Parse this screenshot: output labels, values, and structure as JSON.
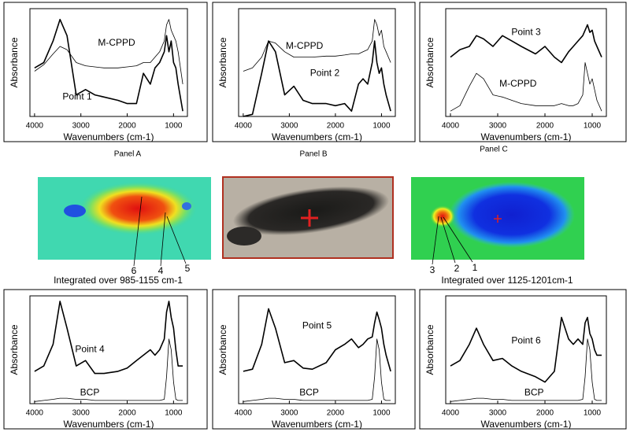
{
  "chart_data": [
    {
      "type": "line",
      "xlabel": "Wavenumbers (cm-1)",
      "ylabel": "Absorbance",
      "x": [
        4000,
        3800,
        3600,
        3450,
        3300,
        3100,
        2900,
        2700,
        2500,
        2200,
        2000,
        1800,
        1650,
        1500,
        1400,
        1300,
        1200,
        1150,
        1100,
        1050,
        1000,
        950,
        900,
        800
      ],
      "xlim": [
        4100,
        700
      ],
      "xticks": [
        4000,
        3000,
        2000,
        1000
      ],
      "ylim": [
        0,
        1
      ],
      "series": [
        {
          "name": "M-CPPD",
          "color": "#000000",
          "style": "thin",
          "values": [
            0.42,
            0.48,
            0.58,
            0.65,
            0.62,
            0.5,
            0.47,
            0.46,
            0.45,
            0.45,
            0.46,
            0.47,
            0.5,
            0.5,
            0.55,
            0.6,
            0.7,
            0.85,
            0.9,
            0.8,
            0.75,
            0.7,
            0.6,
            0.3
          ]
        },
        {
          "name": "Point 1",
          "color": "#000000",
          "style": "thick",
          "values": [
            0.45,
            0.5,
            0.7,
            0.9,
            0.75,
            0.2,
            0.25,
            0.2,
            0.18,
            0.15,
            0.12,
            0.12,
            0.4,
            0.3,
            0.45,
            0.5,
            0.6,
            0.75,
            0.6,
            0.7,
            0.5,
            0.45,
            0.3,
            0.05
          ]
        }
      ]
    },
    {
      "type": "line",
      "xlabel": "Wavenumbers (cm-1)",
      "ylabel": "Absorbance",
      "x": [
        4000,
        3800,
        3600,
        3450,
        3300,
        3100,
        2900,
        2700,
        2500,
        2200,
        2000,
        1800,
        1650,
        1500,
        1400,
        1300,
        1200,
        1150,
        1100,
        1050,
        1000,
        950,
        900,
        800
      ],
      "xlim": [
        4100,
        700
      ],
      "xticks": [
        4000,
        3000,
        2000,
        1000
      ],
      "ylim": [
        0,
        1
      ],
      "series": [
        {
          "name": "M-CPPD",
          "color": "#000000",
          "style": "thin",
          "values": [
            0.42,
            0.45,
            0.55,
            0.7,
            0.68,
            0.6,
            0.55,
            0.55,
            0.55,
            0.56,
            0.56,
            0.57,
            0.58,
            0.58,
            0.6,
            0.62,
            0.7,
            0.9,
            0.85,
            0.75,
            0.8,
            0.65,
            0.6,
            0.5
          ]
        },
        {
          "name": "Point 2",
          "color": "#000000",
          "style": "thick",
          "values": [
            0.0,
            0.02,
            0.4,
            0.7,
            0.6,
            0.2,
            0.28,
            0.15,
            0.12,
            0.12,
            0.1,
            0.12,
            0.05,
            0.3,
            0.35,
            0.3,
            0.5,
            0.7,
            0.5,
            0.4,
            0.45,
            0.3,
            0.2,
            0.05
          ]
        }
      ]
    },
    {
      "type": "line",
      "xlabel": "Wavenumbers (cm-1)",
      "ylabel": "Absorbance",
      "x": [
        4000,
        3800,
        3600,
        3450,
        3300,
        3100,
        2900,
        2700,
        2500,
        2200,
        2000,
        1800,
        1650,
        1500,
        1400,
        1300,
        1200,
        1150,
        1100,
        1050,
        1000,
        950,
        900,
        800
      ],
      "xlim": [
        4100,
        700
      ],
      "xticks": [
        4000,
        3000,
        2000,
        1000
      ],
      "ylim": [
        0,
        1
      ],
      "series": [
        {
          "name": "Point 3",
          "color": "#000000",
          "style": "thick",
          "values": [
            0.55,
            0.62,
            0.65,
            0.75,
            0.72,
            0.65,
            0.75,
            0.7,
            0.65,
            0.58,
            0.65,
            0.55,
            0.5,
            0.6,
            0.65,
            0.7,
            0.75,
            0.8,
            0.85,
            0.78,
            0.8,
            0.7,
            0.65,
            0.55
          ]
        },
        {
          "name": "M-CPPD",
          "color": "#000000",
          "style": "thin",
          "values": [
            0.05,
            0.1,
            0.28,
            0.4,
            0.35,
            0.2,
            0.18,
            0.15,
            0.12,
            0.1,
            0.1,
            0.1,
            0.12,
            0.1,
            0.1,
            0.12,
            0.2,
            0.5,
            0.4,
            0.3,
            0.35,
            0.25,
            0.15,
            0.05
          ]
        }
      ]
    },
    {
      "type": "line",
      "xlabel": "Wavenumbers (cm-1)",
      "ylabel": "Absorbance",
      "x": [
        4000,
        3800,
        3600,
        3450,
        3300,
        3100,
        2900,
        2700,
        2500,
        2200,
        2000,
        1800,
        1650,
        1500,
        1400,
        1300,
        1200,
        1150,
        1100,
        1050,
        1000,
        950,
        900,
        800
      ],
      "xlim": [
        4100,
        700
      ],
      "xticks": [
        4000,
        3000,
        2000,
        1000
      ],
      "ylim": [
        0,
        1
      ],
      "series": [
        {
          "name": "Point 4",
          "color": "#000000",
          "style": "thick",
          "values": [
            0.3,
            0.35,
            0.55,
            0.95,
            0.7,
            0.35,
            0.4,
            0.28,
            0.28,
            0.3,
            0.33,
            0.4,
            0.45,
            0.5,
            0.45,
            0.5,
            0.6,
            0.85,
            0.95,
            0.8,
            0.7,
            0.5,
            0.35,
            0.35
          ]
        },
        {
          "name": "BCP",
          "color": "#000000",
          "style": "thin",
          "values": [
            0.02,
            0.03,
            0.04,
            0.05,
            0.05,
            0.04,
            0.04,
            0.03,
            0.03,
            0.03,
            0.03,
            0.03,
            0.03,
            0.03,
            0.03,
            0.03,
            0.04,
            0.25,
            0.6,
            0.5,
            0.2,
            0.04,
            0.03,
            0.03
          ]
        }
      ]
    },
    {
      "type": "line",
      "xlabel": "Wavenumbers (cm-1)",
      "ylabel": "Absorbance",
      "x": [
        4000,
        3800,
        3600,
        3450,
        3300,
        3100,
        2900,
        2700,
        2500,
        2200,
        2000,
        1800,
        1650,
        1500,
        1400,
        1300,
        1200,
        1150,
        1100,
        1050,
        1000,
        950,
        900,
        800
      ],
      "xlim": [
        4100,
        700
      ],
      "xticks": [
        4000,
        3000,
        2000,
        1000
      ],
      "ylim": [
        0,
        1
      ],
      "series": [
        {
          "name": "Point 5",
          "color": "#000000",
          "style": "thick",
          "values": [
            0.3,
            0.32,
            0.55,
            0.88,
            0.7,
            0.38,
            0.4,
            0.33,
            0.32,
            0.38,
            0.5,
            0.55,
            0.6,
            0.52,
            0.55,
            0.6,
            0.62,
            0.75,
            0.85,
            0.78,
            0.7,
            0.55,
            0.45,
            0.3
          ]
        },
        {
          "name": "BCP",
          "color": "#000000",
          "style": "thin",
          "values": [
            0.02,
            0.03,
            0.04,
            0.05,
            0.05,
            0.04,
            0.04,
            0.03,
            0.03,
            0.03,
            0.03,
            0.03,
            0.03,
            0.03,
            0.03,
            0.03,
            0.04,
            0.25,
            0.6,
            0.5,
            0.2,
            0.04,
            0.03,
            0.03
          ]
        }
      ]
    },
    {
      "type": "line",
      "xlabel": "Wavenumbers (cm-1)",
      "ylabel": "Absorbance",
      "x": [
        4000,
        3800,
        3600,
        3450,
        3300,
        3100,
        2900,
        2700,
        2500,
        2200,
        2000,
        1800,
        1650,
        1500,
        1400,
        1300,
        1200,
        1150,
        1100,
        1050,
        1000,
        950,
        900,
        800
      ],
      "xlim": [
        4100,
        700
      ],
      "xticks": [
        4000,
        3000,
        2000,
        1000
      ],
      "ylim": [
        0,
        1
      ],
      "series": [
        {
          "name": "Point 6",
          "color": "#000000",
          "style": "thick",
          "values": [
            0.35,
            0.4,
            0.55,
            0.7,
            0.55,
            0.4,
            0.42,
            0.35,
            0.3,
            0.25,
            0.2,
            0.3,
            0.8,
            0.6,
            0.55,
            0.6,
            0.55,
            0.75,
            0.8,
            0.65,
            0.6,
            0.5,
            0.45,
            0.45
          ]
        },
        {
          "name": "BCP",
          "color": "#000000",
          "style": "thin",
          "values": [
            0.02,
            0.03,
            0.04,
            0.05,
            0.05,
            0.04,
            0.04,
            0.03,
            0.03,
            0.03,
            0.03,
            0.03,
            0.03,
            0.03,
            0.03,
            0.03,
            0.04,
            0.25,
            0.6,
            0.5,
            0.2,
            0.04,
            0.03,
            0.03
          ]
        }
      ]
    }
  ],
  "panels": [
    "Panel A",
    "Panel B",
    "Panel C"
  ],
  "left_map": {
    "caption": "Integrated over 985-1155 cm-1",
    "markers": [
      "6",
      "4",
      "5"
    ]
  },
  "right_map": {
    "caption": "Integrated over 1125-1201cm-1",
    "markers": [
      "3",
      "2",
      "1"
    ]
  }
}
